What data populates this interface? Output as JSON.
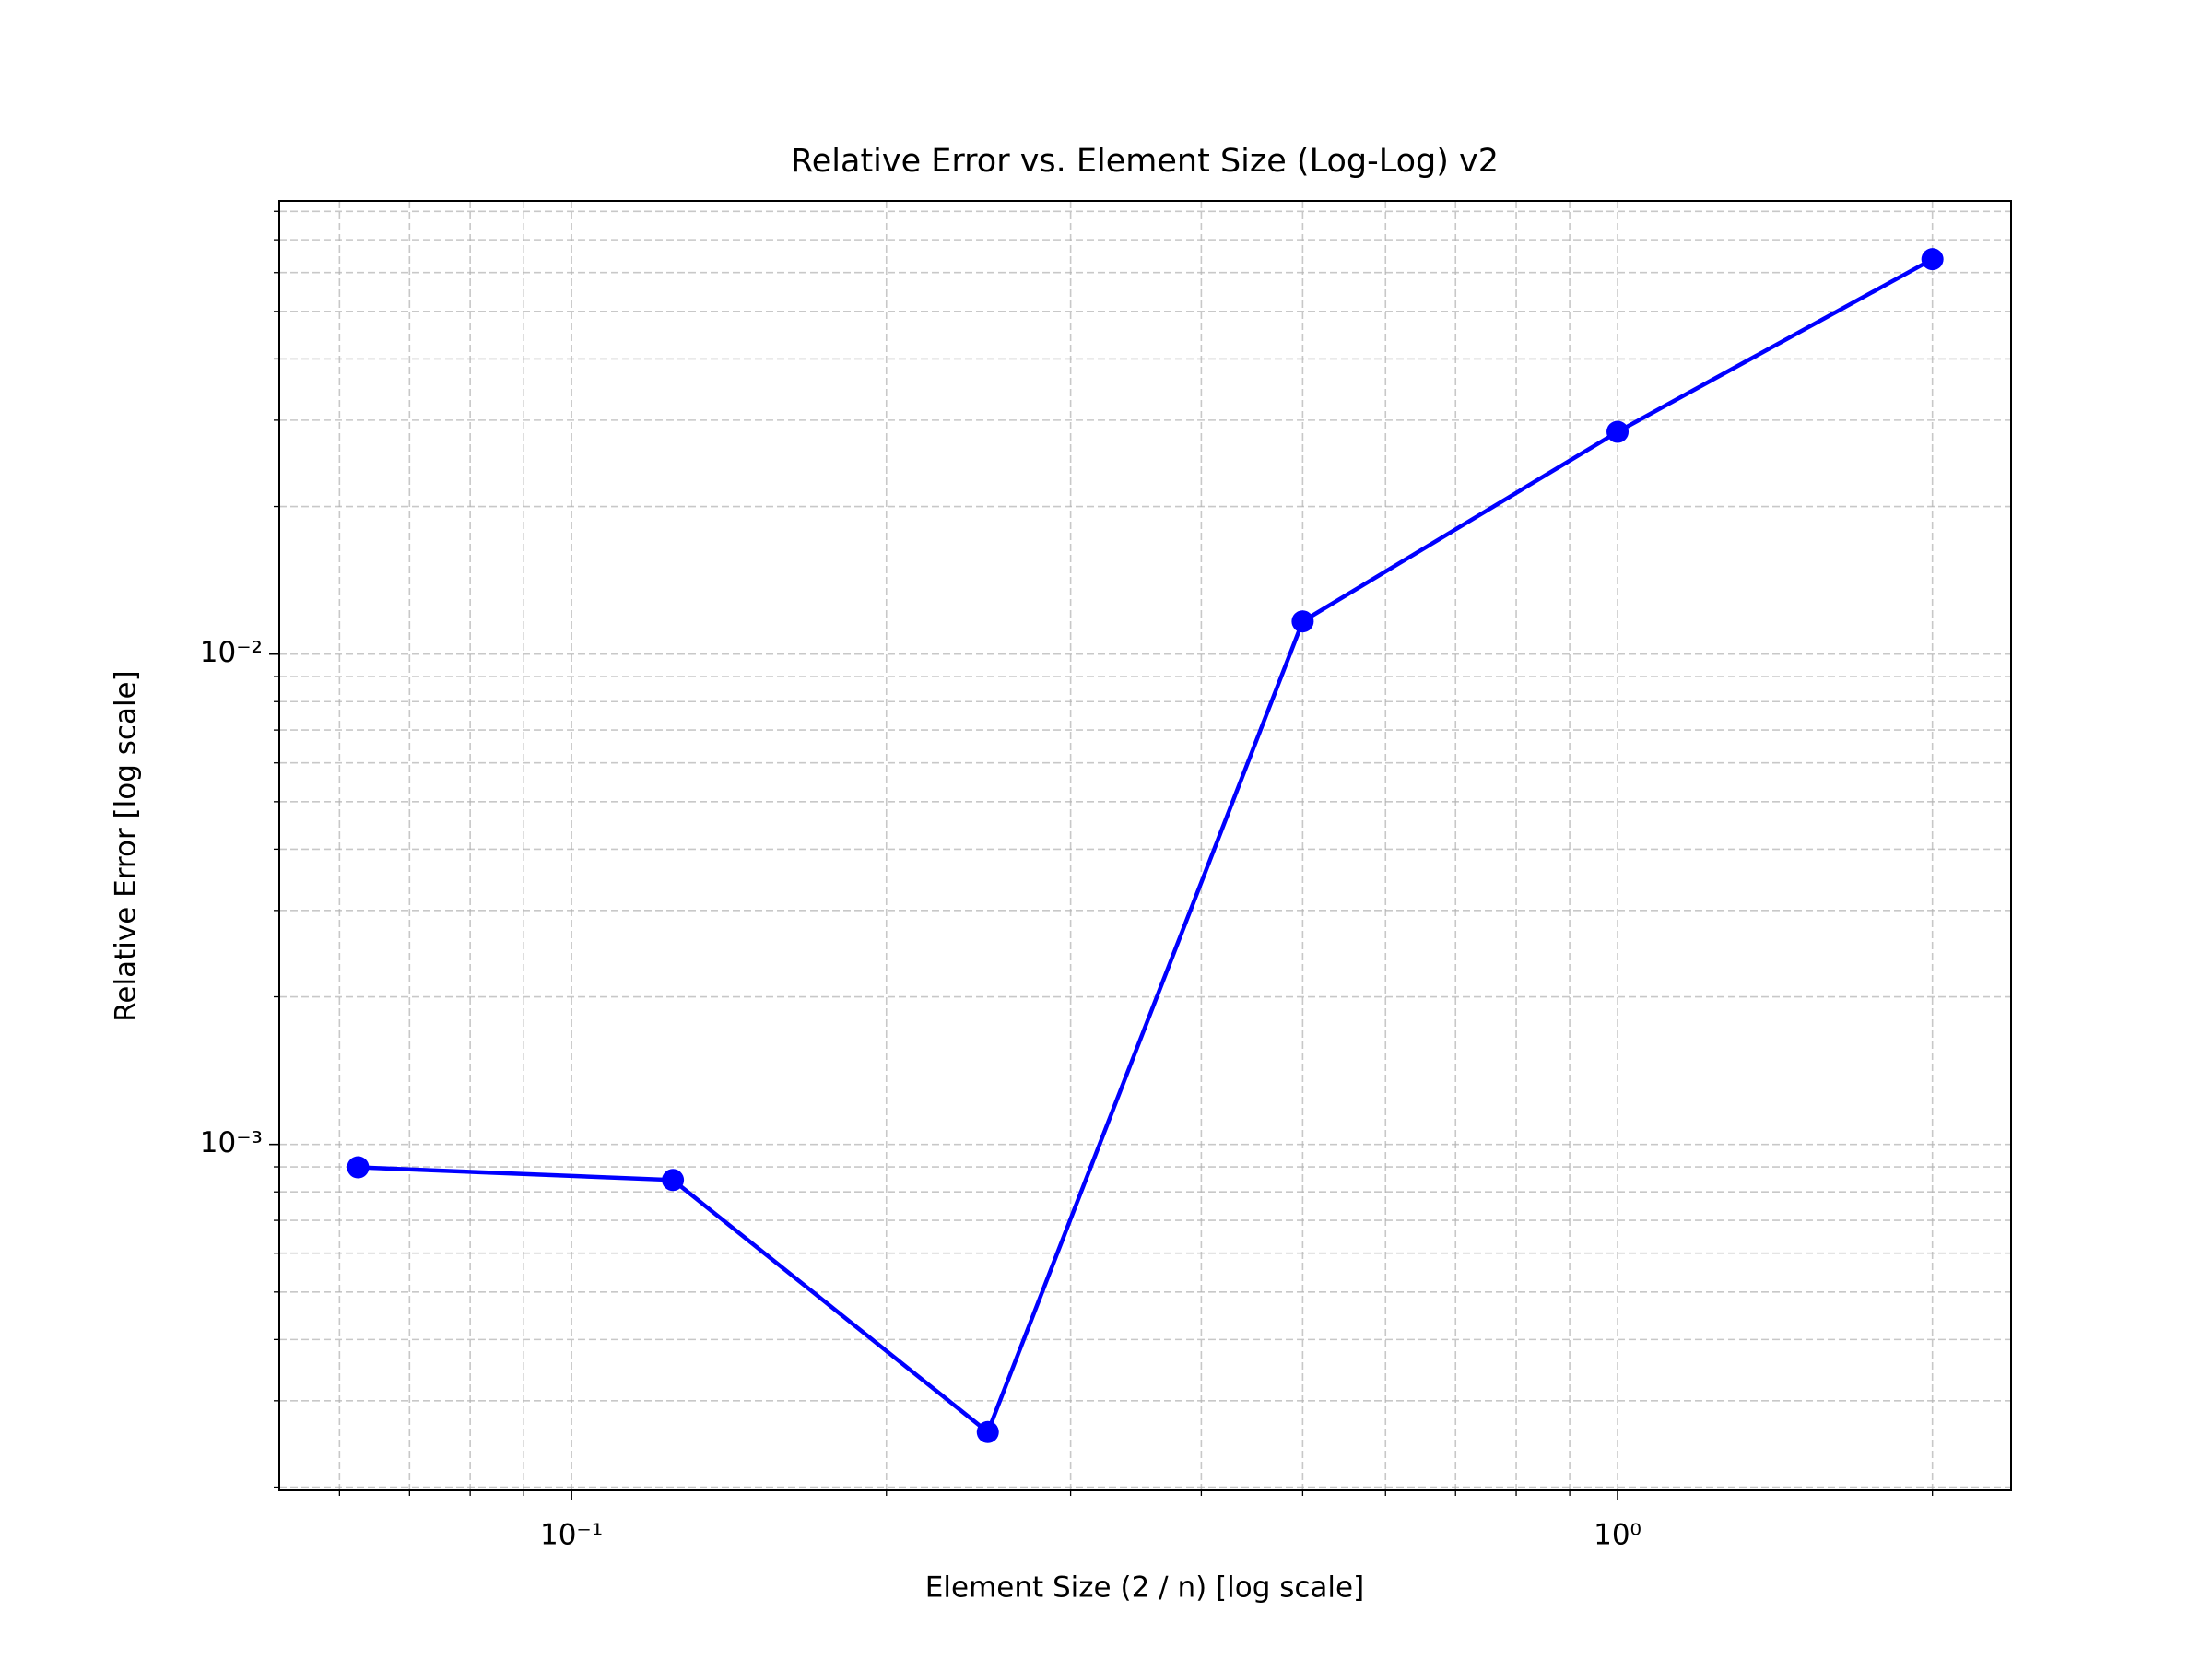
{
  "chart_data": {
    "type": "line",
    "title": "Relative Error vs. Element Size (Log-Log) v2",
    "xlabel": "Element Size (2 / n) [log scale]",
    "ylabel": "Relative Error [log scale]",
    "x": [
      0.0625,
      0.125,
      0.25,
      0.5,
      1,
      2
    ],
    "series": [
      {
        "name": "Relative Error",
        "color": "#0000ff",
        "values": [
          0.000898,
          0.000846,
          0.000259,
          0.01166,
          0.0284,
          0.0639
        ]
      }
    ],
    "xscale": "log",
    "yscale": "log",
    "xlim": [
      0.05255,
      2.378
    ],
    "ylim": [
      0.000197,
      0.084
    ],
    "xticks": [
      {
        "value": 0.1,
        "label": "10⁻¹"
      },
      {
        "value": 1,
        "label": "10⁰"
      }
    ],
    "yticks": [
      {
        "value": 0.001,
        "label": "10⁻³"
      },
      {
        "value": 0.01,
        "label": "10⁻²"
      }
    ],
    "xminorticks": [
      0.06,
      0.07,
      0.08,
      0.09,
      0.2,
      0.3,
      0.4,
      0.5,
      0.6,
      0.7,
      0.8,
      0.9,
      2
    ],
    "yminorticks": [
      0.0002,
      0.0003,
      0.0004,
      0.0005,
      0.0006,
      0.0007,
      0.0008,
      0.0009,
      0.002,
      0.003,
      0.004,
      0.005,
      0.006,
      0.007,
      0.008,
      0.009,
      0.02,
      0.03,
      0.04,
      0.05,
      0.06,
      0.07,
      0.08
    ],
    "grid": true,
    "markers": true
  }
}
